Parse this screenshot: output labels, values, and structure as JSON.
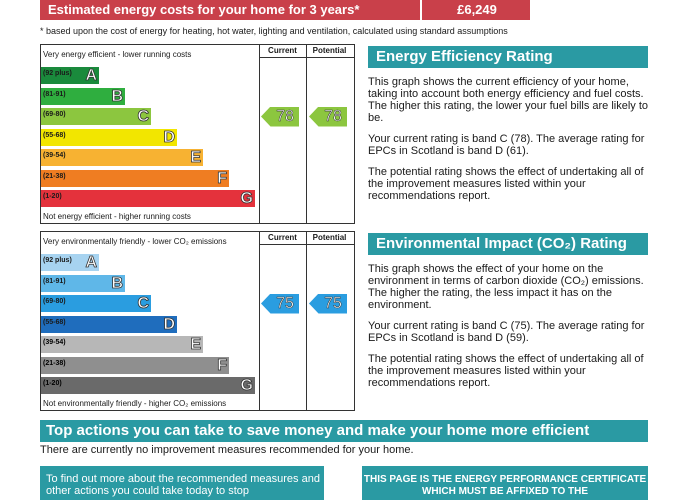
{
  "costs": {
    "label": "Estimated energy costs for your home for 3 years*",
    "value": "£6,249",
    "footnote": "* based upon the cost of energy for heating, hot water, lighting and ventilation, calculated using standard assumptions"
  },
  "energy_chart": {
    "top_label": "Very energy efficient - lower running costs",
    "bottom_label": "Not energy efficient - higher running costs",
    "current_header": "Current",
    "potential_header": "Potential",
    "current": "78",
    "potential": "78",
    "current_fraction_pos": 2,
    "bands": [
      {
        "range": "(92 plus)",
        "letter": "A",
        "color": "#1a8a3c"
      },
      {
        "range": "(81-91)",
        "letter": "B",
        "color": "#2fae3f"
      },
      {
        "range": "(69-80)",
        "letter": "C",
        "color": "#8cc63f"
      },
      {
        "range": "(55-68)",
        "letter": "D",
        "color": "#f2e600"
      },
      {
        "range": "(39-54)",
        "letter": "E",
        "color": "#f7b232"
      },
      {
        "range": "(21-38)",
        "letter": "F",
        "color": "#ef7d22"
      },
      {
        "range": "(1-20)",
        "letter": "G",
        "color": "#e4323c"
      }
    ],
    "arrow_color": "#8cc63f"
  },
  "env_chart": {
    "top_label": "Very environmentally friendly - lower CO₂ emissions",
    "bottom_label": "Not environmentally friendly - higher CO₂ emissions",
    "current_header": "Current",
    "potential_header": "Potential",
    "current": "75",
    "potential": "75",
    "bands": [
      {
        "range": "(92 plus)",
        "letter": "A",
        "color": "#a7d3f0"
      },
      {
        "range": "(81-91)",
        "letter": "B",
        "color": "#5fb7e8"
      },
      {
        "range": "(69-80)",
        "letter": "C",
        "color": "#2a9de0"
      },
      {
        "range": "(55-68)",
        "letter": "D",
        "color": "#1f6dbd"
      },
      {
        "range": "(39-54)",
        "letter": "E",
        "color": "#b7b7b7"
      },
      {
        "range": "(21-38)",
        "letter": "F",
        "color": "#8f8f8f"
      },
      {
        "range": "(1-20)",
        "letter": "G",
        "color": "#6a6a6a"
      }
    ],
    "arrow_color": "#2a9de0"
  },
  "eer": {
    "title": "Energy Efficiency Rating",
    "p1": "This graph shows the current efficiency of your home, taking into account both energy efficiency and fuel costs. The higher this rating, the lower your fuel bills are likely to be.",
    "p2": "Your current rating is band C (78). The average rating for EPCs in Scotland is band D (61).",
    "p3": "The potential rating shows the effect of undertaking all of the improvement measures listed within your recommendations report."
  },
  "eir": {
    "title": "Environmental Impact (CO₂) Rating",
    "p1": "This graph shows the effect of your home on the environment in terms of carbon dioxide (CO₂) emissions. The higher the rating, the less impact it has on the environment.",
    "p2": "Your current rating is band C (75). The average rating for EPCs in Scotland is band D (59).",
    "p3": "The potential rating shows the effect of undertaking all of the improvement measures listed within your recommendations report."
  },
  "actions": {
    "title": "Top actions you can take to save money and make your home more efficient",
    "note": "There are currently no improvement measures recommended for your home."
  },
  "info_box": "To find out more about the recommended measures and other actions you could take today to stop",
  "cert_box": "THIS PAGE IS THE ENERGY PERFORMANCE CERTIFICATE WHICH MUST BE AFFIXED TO THE"
}
